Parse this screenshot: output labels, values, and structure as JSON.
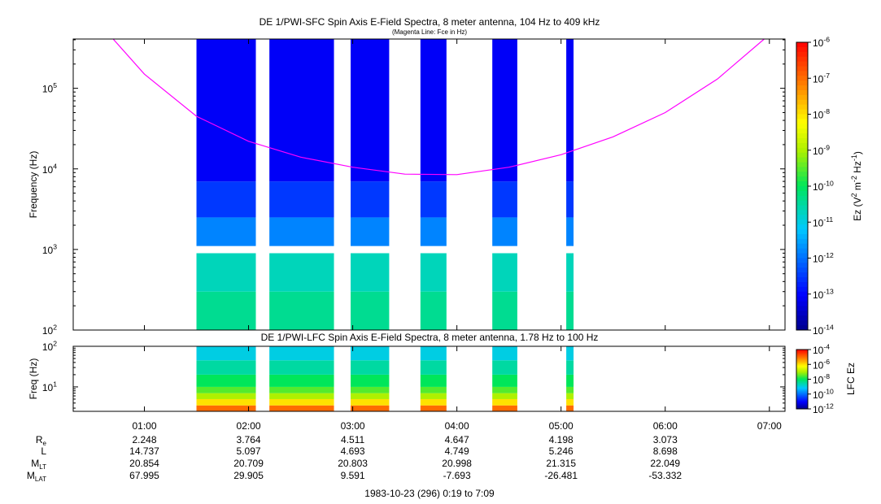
{
  "chart_data": [
    {
      "type": "heatmap",
      "title": "DE 1/PWI-SFC  Spin Axis E-Field Spectra, 8 meter antenna, 104 Hz to 409 kHz",
      "subtitle": "(Magenta Line: Fce in Hz)",
      "ylabel": "Frequency (Hz)",
      "yscale": "log",
      "ylim": [
        100,
        409000
      ],
      "yticks": [
        {
          "value": 100,
          "mant": "10",
          "exp": "2"
        },
        {
          "value": 1000,
          "mant": "10",
          "exp": "3"
        },
        {
          "value": 10000,
          "mant": "10",
          "exp": "4"
        },
        {
          "value": 100000,
          "mant": "10",
          "exp": "5"
        }
      ],
      "colorbar": {
        "label_parts": [
          "Ez (V",
          "2",
          " m",
          "-2",
          " Hz",
          "-1",
          ")"
        ],
        "scale": "log",
        "range": [
          1e-14,
          1e-06
        ],
        "ticks": [
          {
            "value": 1e-06,
            "mant": "10",
            "exp": "-6"
          },
          {
            "value": 1e-07,
            "mant": "10",
            "exp": "-7"
          },
          {
            "value": 1e-08,
            "mant": "10",
            "exp": "-8"
          },
          {
            "value": 1e-09,
            "mant": "10",
            "exp": "-9"
          },
          {
            "value": 1e-10,
            "mant": "10",
            "exp": "-10"
          },
          {
            "value": 1e-11,
            "mant": "10",
            "exp": "-11"
          },
          {
            "value": 1e-12,
            "mant": "10",
            "exp": "-12"
          },
          {
            "value": 1e-13,
            "mant": "10",
            "exp": "-13"
          },
          {
            "value": 1e-14,
            "mant": "10",
            "exp": "-14"
          }
        ]
      },
      "data_intervals_hours": [
        [
          1.5,
          2.07
        ],
        [
          2.2,
          2.82
        ],
        [
          2.98,
          3.35
        ],
        [
          3.65,
          3.9
        ],
        [
          4.34,
          4.58
        ],
        [
          5.05,
          5.12
        ]
      ],
      "data_gap_hz": [
        900,
        1100
      ],
      "spectrum_levels": [
        {
          "freq_range": [
            100,
            300
          ],
          "level": 4e-11
        },
        {
          "freq_range": [
            300,
            900
          ],
          "level": 2e-11
        },
        {
          "freq_range": [
            1100,
            2500
          ],
          "level": 1.5e-12
        },
        {
          "freq_range": [
            2500,
            7000
          ],
          "level": 3e-13
        },
        {
          "freq_range": [
            7000,
            409000
          ],
          "level": 8e-14
        }
      ],
      "fce_line": {
        "color": "#ff00ff",
        "points": [
          {
            "t": 0.7,
            "f": 409000
          },
          {
            "t": 1.0,
            "f": 150000
          },
          {
            "t": 1.5,
            "f": 45000
          },
          {
            "t": 2.0,
            "f": 22000
          },
          {
            "t": 2.5,
            "f": 14000
          },
          {
            "t": 3.0,
            "f": 10500
          },
          {
            "t": 3.5,
            "f": 8600
          },
          {
            "t": 4.0,
            "f": 8500
          },
          {
            "t": 4.5,
            "f": 10500
          },
          {
            "t": 5.0,
            "f": 15000
          },
          {
            "t": 5.5,
            "f": 25000
          },
          {
            "t": 6.0,
            "f": 50000
          },
          {
            "t": 6.5,
            "f": 130000
          },
          {
            "t": 6.95,
            "f": 409000
          }
        ]
      }
    },
    {
      "type": "heatmap",
      "title": "DE 1/PWI-LFC  Spin Axis E-Field Spectra, 8 meter antenna, 1.78 Hz to 100 Hz",
      "ylabel": "Freq (Hz)",
      "yscale": "log",
      "ylim": [
        2.5,
        100
      ],
      "yticks": [
        {
          "value": 10,
          "mant": "10",
          "exp": "1"
        },
        {
          "value": 100,
          "mant": "10",
          "exp": "2"
        }
      ],
      "colorbar": {
        "label": "LFC Ez",
        "scale": "log",
        "range": [
          1e-12,
          0.0001
        ],
        "ticks": [
          {
            "value": 0.0001,
            "mant": "10",
            "exp": "-4"
          },
          {
            "value": 1e-06,
            "mant": "10",
            "exp": "-6"
          },
          {
            "value": 1e-08,
            "mant": "10",
            "exp": "-8"
          },
          {
            "value": 1e-10,
            "mant": "10",
            "exp": "-10"
          },
          {
            "value": 1e-12,
            "mant": "10",
            "exp": "-12"
          }
        ]
      },
      "data_intervals_hours": [
        [
          1.5,
          2.07
        ],
        [
          2.2,
          2.82
        ],
        [
          2.98,
          3.35
        ],
        [
          3.65,
          3.9
        ],
        [
          4.34,
          4.58
        ],
        [
          5.05,
          5.12
        ]
      ],
      "spectrum_levels": [
        {
          "freq_range": [
            2.5,
            3.5
          ],
          "level": 1e-05
        },
        {
          "freq_range": [
            3.5,
            5
          ],
          "level": 1e-06
        },
        {
          "freq_range": [
            5,
            7
          ],
          "level": 1e-07
        },
        {
          "freq_range": [
            7,
            10
          ],
          "level": 3e-08
        },
        {
          "freq_range": [
            10,
            20
          ],
          "level": 1e-08
        },
        {
          "freq_range": [
            20,
            45
          ],
          "level": 3e-09
        },
        {
          "freq_range": [
            45,
            100
          ],
          "level": 1e-09
        }
      ]
    }
  ],
  "time_axis": {
    "range_hours": [
      0.3167,
      7.15
    ],
    "ticks": [
      {
        "t": 1,
        "label": "01:00"
      },
      {
        "t": 2,
        "label": "02:00"
      },
      {
        "t": 3,
        "label": "03:00"
      },
      {
        "t": 4,
        "label": "04:00"
      },
      {
        "t": 5,
        "label": "05:00"
      },
      {
        "t": 6,
        "label": "06:00"
      },
      {
        "t": 7,
        "label": "07:00"
      }
    ]
  },
  "ephemeris": {
    "rows": [
      {
        "label": "R",
        "sub": "e",
        "values": [
          "2.248",
          "3.764",
          "4.511",
          "4.647",
          "4.198",
          "3.073"
        ]
      },
      {
        "label": "L",
        "sub": "",
        "values": [
          "14.737",
          "5.097",
          "4.693",
          "4.749",
          "5.246",
          "8.698"
        ]
      },
      {
        "label": "M",
        "sub": "LT",
        "values": [
          "20.854",
          "20.709",
          "20.803",
          "20.998",
          "21.315",
          "22.049"
        ]
      },
      {
        "label": "M",
        "sub": "LAT",
        "values": [
          "67.995",
          "29.905",
          "9.591",
          "-7.693",
          "-26.481",
          "-53.332"
        ]
      }
    ]
  },
  "footer": "1983-10-23 (296) 0:19 to 7:09"
}
